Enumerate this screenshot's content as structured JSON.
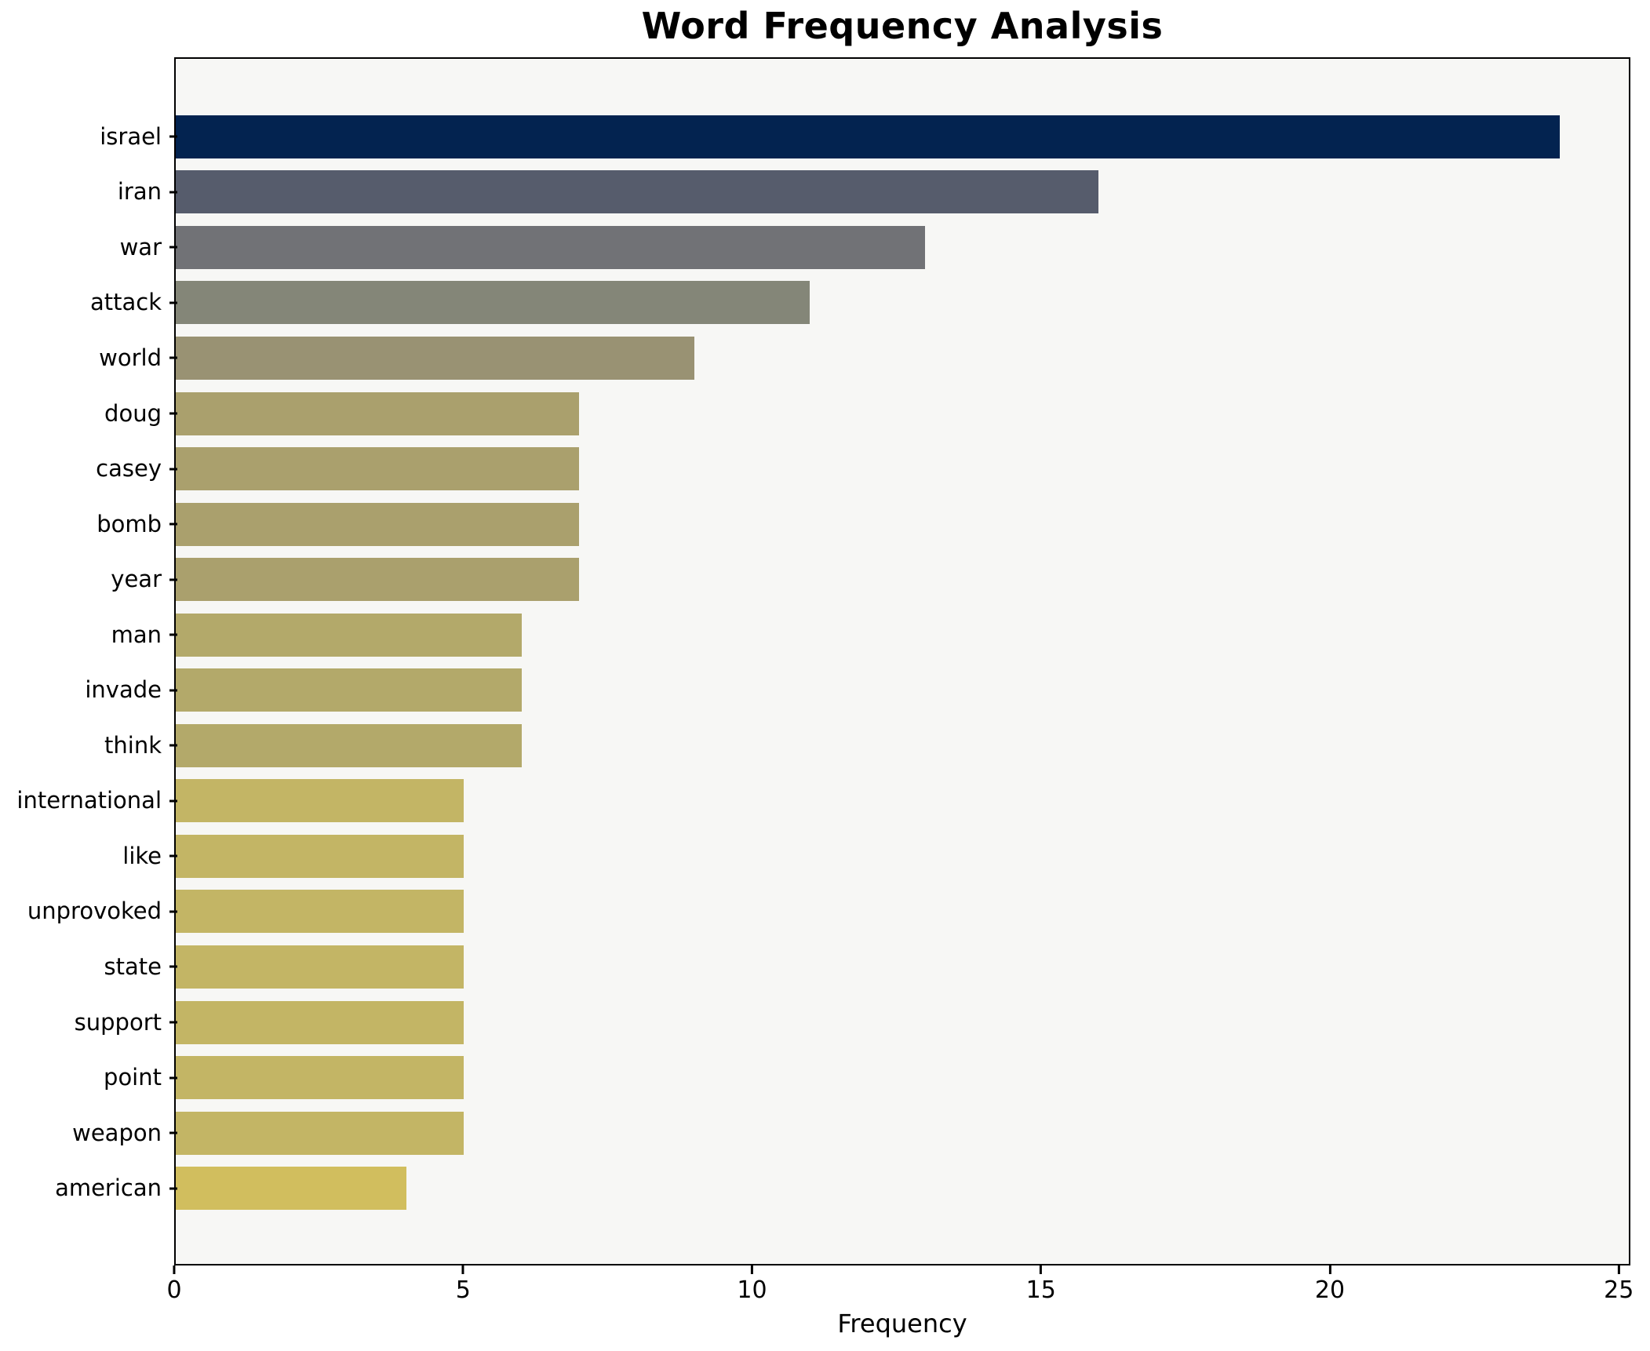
{
  "chart": {
    "title": "Word Frequency Analysis",
    "xlabel": "Frequency"
  },
  "chart_data": {
    "type": "bar",
    "orientation": "horizontal",
    "title": "Word Frequency Analysis",
    "xlabel": "Frequency",
    "ylabel": "",
    "grid": false,
    "legend": false,
    "xlim": [
      0,
      25.2
    ],
    "x_ticks": [
      0,
      5,
      10,
      15,
      20,
      25
    ],
    "categories": [
      "israel",
      "iran",
      "war",
      "attack",
      "world",
      "doug",
      "casey",
      "bomb",
      "year",
      "man",
      "invade",
      "think",
      "international",
      "like",
      "unprovoked",
      "state",
      "support",
      "point",
      "weapon",
      "american"
    ],
    "values": [
      24,
      16,
      13,
      11,
      9,
      7,
      7,
      7,
      7,
      6,
      6,
      6,
      5,
      5,
      5,
      5,
      5,
      5,
      5,
      4
    ],
    "bar_colors": [
      "#032350",
      "#565c6c",
      "#717276",
      "#848678",
      "#999273",
      "#aaa06d",
      "#aaa06d",
      "#aaa06d",
      "#aaa06d",
      "#b3a96a",
      "#b3a96a",
      "#b3a96a",
      "#c3b565",
      "#c3b565",
      "#c3b565",
      "#c3b565",
      "#c3b565",
      "#c3b565",
      "#c3b565",
      "#d1be5e"
    ],
    "plot_background": "#f7f7f5",
    "figure_background": "#ffffff",
    "spine_color": "#000000"
  }
}
